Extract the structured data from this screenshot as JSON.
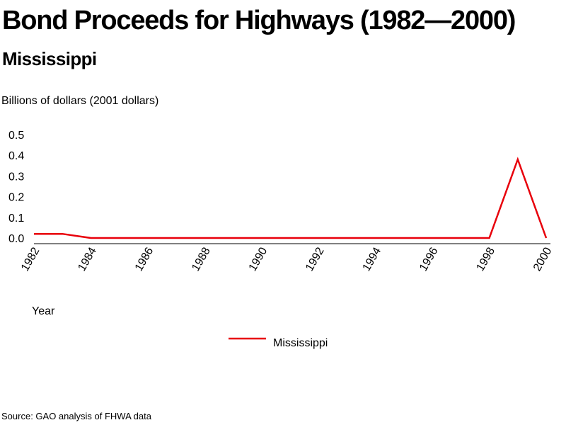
{
  "title": "Bond Proceeds for Highways (1982—2000)",
  "subtitle": "Mississippi",
  "source": "Source: GAO analysis of FHWA data",
  "colors": {
    "series": "#e8000b",
    "axis": "#000000"
  },
  "chart_data": {
    "type": "line",
    "ylabel": "Billions of dollars (2001 dollars)",
    "xlabel": "Year",
    "ylim": [
      0.0,
      0.5
    ],
    "yticks": [
      "0.0",
      "0.1",
      "0.2",
      "0.3",
      "0.4",
      "0.5"
    ],
    "xticks": [
      "1982",
      "1984",
      "1986",
      "1988",
      "1990",
      "1992",
      "1994",
      "1996",
      "1998",
      "2000"
    ],
    "grid": false,
    "legend": "bottom-center",
    "x": [
      1982,
      1983,
      1984,
      1985,
      1986,
      1987,
      1988,
      1989,
      1990,
      1991,
      1992,
      1993,
      1994,
      1995,
      1996,
      1997,
      1998,
      1999,
      2000
    ],
    "series": [
      {
        "name": "Mississippi",
        "values": [
          0.02,
          0.02,
          0.0,
          0.0,
          0.0,
          0.0,
          0.0,
          0.0,
          0.0,
          0.0,
          0.0,
          0.0,
          0.0,
          0.0,
          0.0,
          0.0,
          0.0,
          0.38,
          0.0
        ]
      }
    ]
  }
}
